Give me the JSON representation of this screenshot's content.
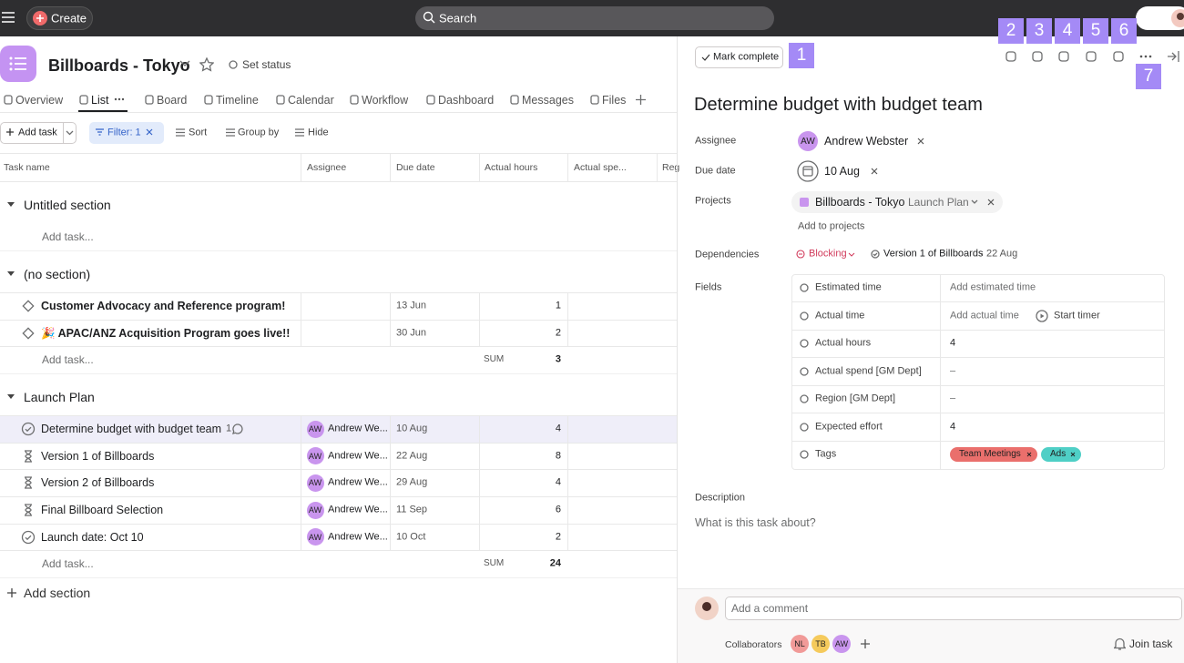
{
  "topbar": {
    "create": "Create",
    "search": "Search"
  },
  "project": {
    "title": "Billboards - Tokyo",
    "status": "Set status"
  },
  "tabs": [
    "Overview",
    "List",
    "Board",
    "Timeline",
    "Calendar",
    "Workflow",
    "Dashboard",
    "Messages",
    "Files"
  ],
  "toolbar": {
    "add_task": "Add task",
    "filter": "Filter: 1",
    "sort": "Sort",
    "group_by": "Group by",
    "hide": "Hide"
  },
  "columns": [
    "Task name",
    "Assignee",
    "Due date",
    "Actual hours",
    "Actual spe...",
    "Reg"
  ],
  "sections": [
    {
      "name": "Untitled section",
      "tasks": [],
      "add_task": "Add task..."
    },
    {
      "name": "(no section)",
      "tasks": [
        {
          "name": "Customer Advocacy and Reference program!",
          "due": "13 Jun",
          "hours": 1
        },
        {
          "name": "🎉 APAC/ANZ Acquisition Program goes live!!",
          "due": "30 Jun",
          "hours": 2
        }
      ],
      "add_task": "Add task...",
      "sum_label": "SUM",
      "sum": 3
    },
    {
      "name": "Launch Plan",
      "tasks": [
        {
          "name": "Determine budget with budget team",
          "comments": 1,
          "initials": "AW",
          "assignee": "Andrew We...",
          "due": "10 Aug",
          "hours": 4
        },
        {
          "name": "Version 1 of Billboards",
          "initials": "AW",
          "assignee": "Andrew We...",
          "due": "22 Aug",
          "hours": 8
        },
        {
          "name": "Version 2 of Billboards",
          "initials": "AW",
          "assignee": "Andrew We...",
          "due": "29 Aug",
          "hours": 4
        },
        {
          "name": "Final Billboard Selection",
          "initials": "AW",
          "assignee": "Andrew We...",
          "due": "11 Sep",
          "hours": 6
        },
        {
          "name": "Launch date: Oct 10",
          "initials": "AW",
          "assignee": "Andrew We...",
          "due": "10 Oct",
          "hours": 2
        }
      ],
      "add_task": "Add task...",
      "sum_label": "SUM",
      "sum": 24
    }
  ],
  "add_section": "Add section",
  "detail": {
    "mark_complete": "Mark complete",
    "title": "Determine budget with budget team",
    "labels": {
      "assignee": "Assignee",
      "due_date": "Due date",
      "projects": "Projects",
      "dependencies": "Dependencies",
      "fields": "Fields"
    },
    "assignee": {
      "initials": "AW",
      "name": "Andrew Webster"
    },
    "due_date": "10 Aug",
    "project": {
      "name": "Billboards - Tokyo",
      "section": "Launch Plan"
    },
    "add_to_projects": "Add to projects",
    "dependency": {
      "kind": "Blocking",
      "task": "Version 1 of Billboards",
      "date": "22 Aug"
    },
    "fields": [
      {
        "label": "Estimated time",
        "value": "Add estimated time"
      },
      {
        "label": "Actual time",
        "value": "Add actual time",
        "extra": "Start timer"
      },
      {
        "label": "Actual hours",
        "value": 4
      },
      {
        "label": "Actual spend [GM Dept]",
        "value": "–"
      },
      {
        "label": "Region [GM Dept]",
        "value": "–"
      },
      {
        "label": "Expected effort",
        "value": 4
      },
      {
        "label": "Tags",
        "tags": [
          {
            "name": "Team Meetings",
            "color": "#ea6f6c"
          },
          {
            "name": "Ads",
            "color": "#4fcfc6"
          }
        ]
      }
    ],
    "description_label": "Description",
    "description_placeholder": "What is this task about?",
    "comment_placeholder": "Add a comment",
    "collaborators_label": "Collaborators",
    "collaborators": [
      {
        "initials": "NL",
        "color": "#f19a98"
      },
      {
        "initials": "TB",
        "color": "#f5ca5c"
      },
      {
        "initials": "AW",
        "color": "#c995ee"
      }
    ],
    "join": "Join task"
  },
  "annotations": [
    1,
    2,
    3,
    4,
    5,
    6,
    7
  ]
}
